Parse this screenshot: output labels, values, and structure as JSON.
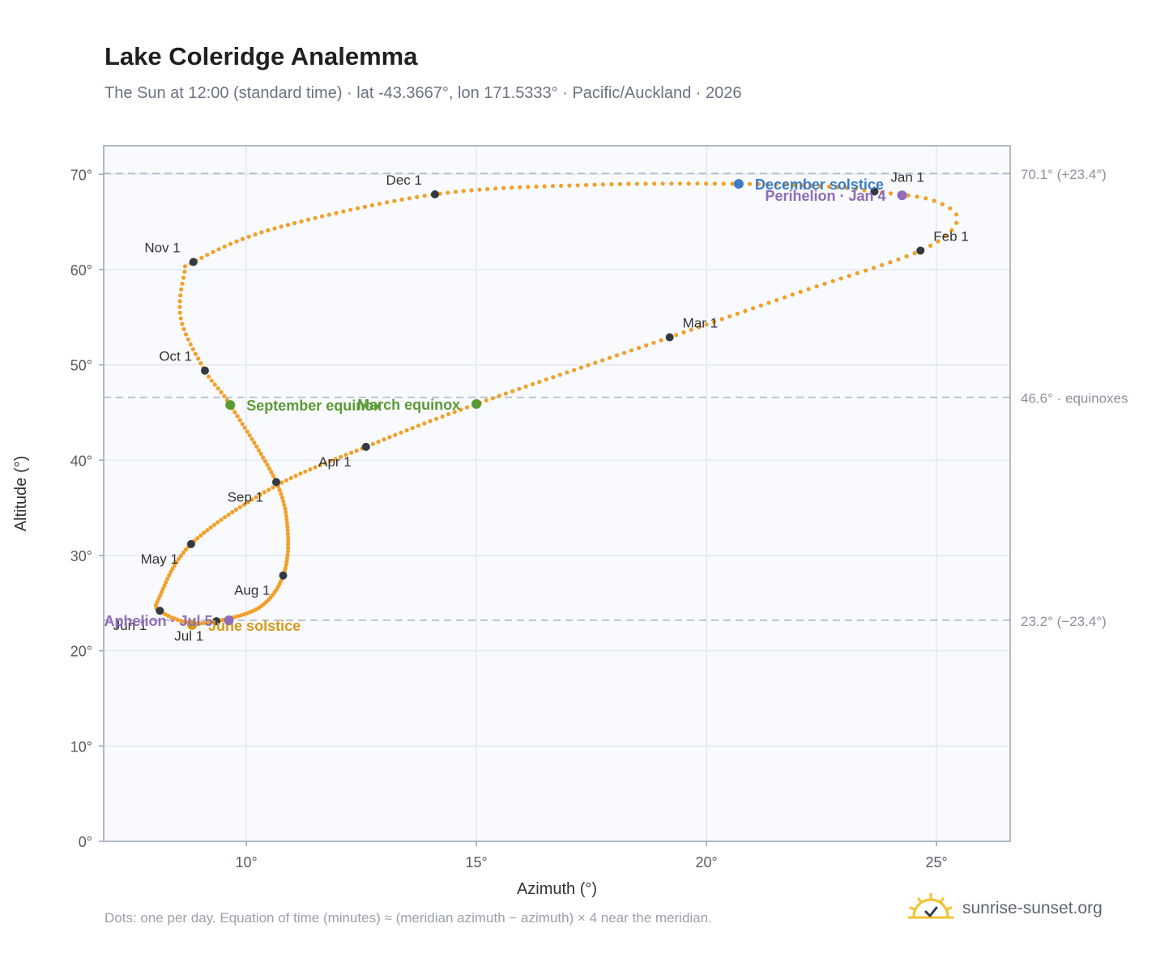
{
  "header": {
    "title": "Lake Coleridge Analemma",
    "subtitle": "The Sun at 12:00 (standard time) · lat -43.3667°, lon 171.5333° · Pacific/Auckland · 2026"
  },
  "footer": {
    "note": "Dots: one per day. Equation of time (minutes) ≈ (meridian azimuth − azimuth) × 4 near the meridian.",
    "brand": "sunrise-sunset.org",
    "brand_icon": "sun-icon"
  },
  "colors": {
    "curve": "#f2a02a",
    "month_marker": "#333a44",
    "equinox": "#5a9a34",
    "june_solstice": "#d69a1c",
    "december_solstice": "#3a7cc8",
    "apsis": "#8e6cb8",
    "plot_background": "#f8fafd",
    "grid": "#e3e8ef",
    "reference_line": "#a8b6c6"
  },
  "chart_data": {
    "type": "scatter",
    "xlabel": "Azimuth (°)",
    "ylabel": "Altitude (°)",
    "xlim": [
      6.9,
      26.6
    ],
    "ylim": [
      0,
      73
    ],
    "x_ticks": [
      {
        "value": 10,
        "label": "10°"
      },
      {
        "value": 15,
        "label": "15°"
      },
      {
        "value": 20,
        "label": "20°"
      },
      {
        "value": 25,
        "label": "25°"
      }
    ],
    "y_ticks": [
      {
        "value": 0,
        "label": "0°"
      },
      {
        "value": 10,
        "label": "10°"
      },
      {
        "value": 20,
        "label": "20°"
      },
      {
        "value": 30,
        "label": "30°"
      },
      {
        "value": 40,
        "label": "40°"
      },
      {
        "value": 50,
        "label": "50°"
      },
      {
        "value": 60,
        "label": "60°"
      },
      {
        "value": 70,
        "label": "70°"
      }
    ],
    "grid": true,
    "reference_lines": [
      {
        "y": 70.1,
        "label": "70.1° (+23.4°)"
      },
      {
        "y": 46.6,
        "label": "46.6° · equinoxes"
      },
      {
        "y": 23.2,
        "label": "23.2° (−23.4°)"
      }
    ],
    "path_knots": [
      {
        "x": 23.62,
        "y": 68.2
      },
      {
        "x": 24.9,
        "y": 67.3
      },
      {
        "x": 25.45,
        "y": 65.2
      },
      {
        "x": 24.65,
        "y": 62.0
      },
      {
        "x": 22.0,
        "y": 57.6
      },
      {
        "x": 19.2,
        "y": 52.9
      },
      {
        "x": 15.0,
        "y": 45.9
      },
      {
        "x": 12.6,
        "y": 41.4
      },
      {
        "x": 10.6,
        "y": 37.2
      },
      {
        "x": 8.8,
        "y": 31.2
      },
      {
        "x": 8.1,
        "y": 25.5
      },
      {
        "x": 8.12,
        "y": 24.2
      },
      {
        "x": 8.7,
        "y": 23.0
      },
      {
        "x": 9.35,
        "y": 23.1
      },
      {
        "x": 10.3,
        "y": 24.6
      },
      {
        "x": 10.8,
        "y": 27.9
      },
      {
        "x": 10.9,
        "y": 32.5
      },
      {
        "x": 10.65,
        "y": 37.7
      },
      {
        "x": 9.65,
        "y": 45.8
      },
      {
        "x": 9.1,
        "y": 49.4
      },
      {
        "x": 8.58,
        "y": 54.8
      },
      {
        "x": 8.65,
        "y": 59.5
      },
      {
        "x": 8.85,
        "y": 60.8
      },
      {
        "x": 10.6,
        "y": 64.3
      },
      {
        "x": 14.1,
        "y": 67.9
      },
      {
        "x": 17.5,
        "y": 68.9
      },
      {
        "x": 20.7,
        "y": 69.0
      },
      {
        "x": 22.7,
        "y": 68.7
      },
      {
        "x": 23.62,
        "y": 68.2
      }
    ],
    "month_markers": [
      {
        "label": "Jan 1",
        "x": 23.65,
        "y": 68.2,
        "anchor": "start",
        "dx": 20,
        "dy": -12
      },
      {
        "label": "Feb 1",
        "x": 24.65,
        "y": 62.0,
        "anchor": "start",
        "dx": 16,
        "dy": -12
      },
      {
        "label": "Mar 1",
        "x": 19.2,
        "y": 52.9,
        "anchor": "start",
        "dx": 16,
        "dy": -12
      },
      {
        "label": "Apr 1",
        "x": 12.6,
        "y": 41.4,
        "anchor": "end",
        "dx": -18,
        "dy": 24
      },
      {
        "label": "May 1",
        "x": 8.8,
        "y": 31.2,
        "anchor": "end",
        "dx": -16,
        "dy": 24
      },
      {
        "label": "Jun 1",
        "x": 8.12,
        "y": 24.2,
        "anchor": "end",
        "dx": -16,
        "dy": 24
      },
      {
        "label": "Jul 1",
        "x": 9.35,
        "y": 23.1,
        "anchor": "end",
        "dx": -16,
        "dy": 24
      },
      {
        "label": "Aug 1",
        "x": 10.8,
        "y": 27.9,
        "anchor": "end",
        "dx": -16,
        "dy": 24
      },
      {
        "label": "Sep 1",
        "x": 10.65,
        "y": 37.7,
        "anchor": "end",
        "dx": -16,
        "dy": 24
      },
      {
        "label": "Oct 1",
        "x": 9.1,
        "y": 49.4,
        "anchor": "end",
        "dx": -16,
        "dy": -12
      },
      {
        "label": "Nov 1",
        "x": 8.85,
        "y": 60.8,
        "anchor": "end",
        "dx": -16,
        "dy": -12
      },
      {
        "label": "Dec 1",
        "x": 14.1,
        "y": 67.9,
        "anchor": "end",
        "dx": -16,
        "dy": -12
      }
    ],
    "events": [
      {
        "label": "March equinox",
        "x": 15.0,
        "y": 45.9,
        "color": "#5a9a34",
        "anchor": "end",
        "dx": -20,
        "dy": 7
      },
      {
        "label": "September equinox",
        "x": 9.65,
        "y": 45.8,
        "color": "#5a9a34",
        "anchor": "start",
        "dx": 20,
        "dy": 7
      },
      {
        "label": "June solstice",
        "x": 8.82,
        "y": 22.7,
        "color": "#d69a1c",
        "anchor": "start",
        "dx": 20,
        "dy": 7
      },
      {
        "label": "December solstice",
        "x": 20.7,
        "y": 69.0,
        "color": "#3a7cc8",
        "anchor": "start",
        "dx": 20,
        "dy": 7
      },
      {
        "label": "Aphelion · Jul 5",
        "x": 9.62,
        "y": 23.2,
        "color": "#8e6cb8",
        "anchor": "end",
        "dx": -20,
        "dy": 7
      },
      {
        "label": "Perihelion · Jan 4",
        "x": 24.25,
        "y": 67.8,
        "color": "#8e6cb8",
        "anchor": "end",
        "dx": -20,
        "dy": 7
      }
    ]
  }
}
